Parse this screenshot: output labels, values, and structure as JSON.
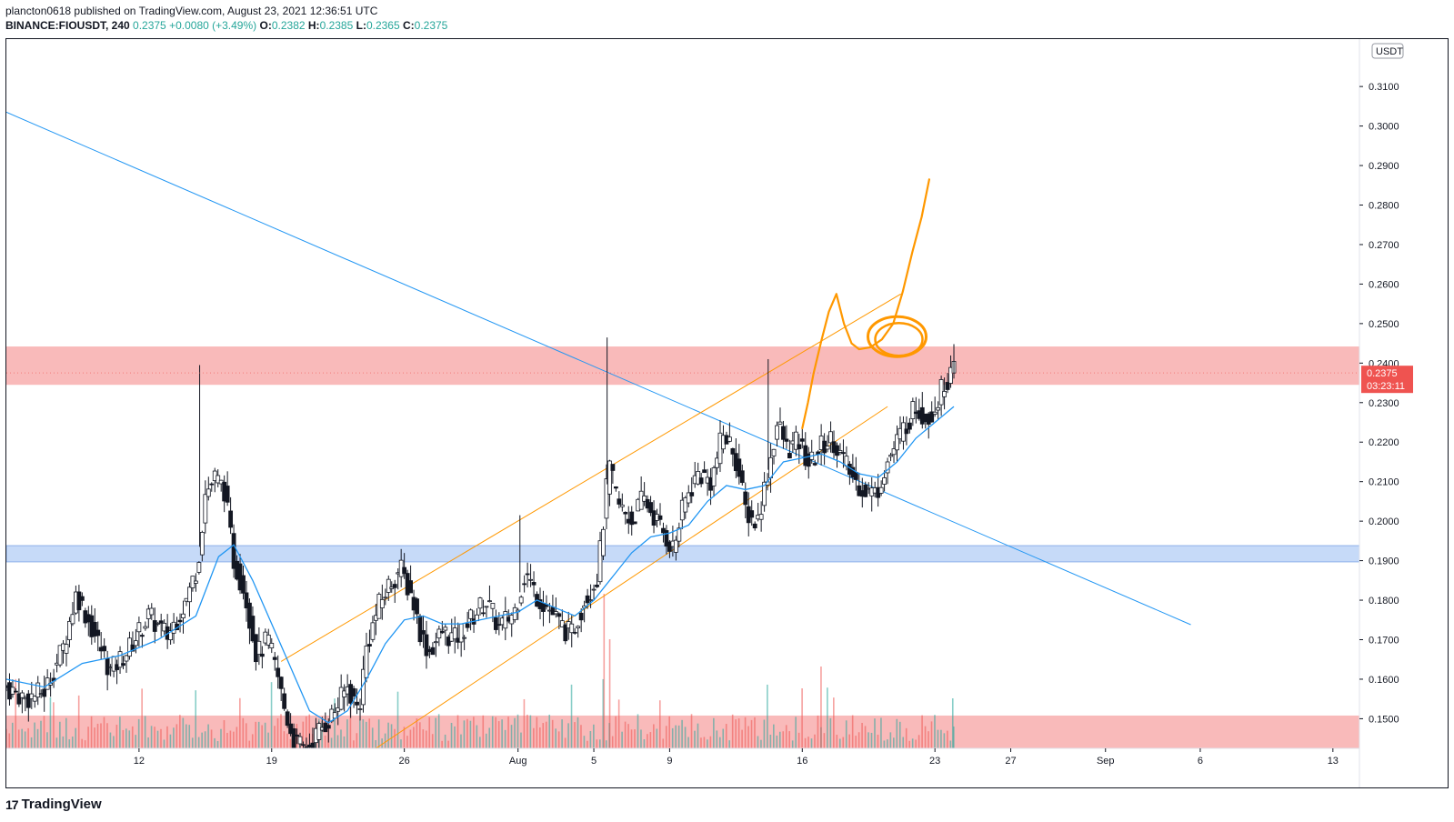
{
  "header": {
    "published": "plancton0618 published on TradingView.com, August 23, 2021 12:36:51 UTC",
    "symbol": "BINANCE:FIOUSDT, 240",
    "last": "0.2375",
    "change": "+0.0080 (+3.49%)",
    "o_label": "O:",
    "o": "0.2382",
    "h_label": "H:",
    "h": "0.2385",
    "l_label": "L:",
    "l": "0.2365",
    "c_label": "C:",
    "c": "0.2375"
  },
  "logo": {
    "text": "TradingView",
    "icon": "tradingview-logo-icon"
  },
  "colors": {
    "up": "#26a69a",
    "down": "#ef5350",
    "candle": "#131722",
    "ma": "#2196f3",
    "channel": "#ff9800",
    "resistance_zone": "#f7a3a3",
    "support_zone": "#b3cdf5",
    "price_tag": "#ef5350"
  },
  "chart_data": {
    "type": "candlestick",
    "currency": "USDT",
    "price_tag": {
      "price": "0.2375",
      "countdown": "03:23:11"
    },
    "y_ticks": [
      "0.1500",
      "0.1600",
      "0.1700",
      "0.1800",
      "0.1900",
      "0.2000",
      "0.2100",
      "0.2200",
      "0.2300",
      "0.2400",
      "0.2500",
      "0.2600",
      "0.2700",
      "0.2800",
      "0.2900",
      "0.3000",
      "0.3100"
    ],
    "ylim": [
      0.1425,
      0.322
    ],
    "x_ticks": [
      {
        "label": "12",
        "day": 12
      },
      {
        "label": "19",
        "day": 19
      },
      {
        "label": "26",
        "day": 26
      },
      {
        "label": "Aug",
        "day": 32
      },
      {
        "label": "5",
        "day": 36
      },
      {
        "label": "9",
        "day": 40
      },
      {
        "label": "16",
        "day": 47
      },
      {
        "label": "23",
        "day": 54
      },
      {
        "label": "27",
        "day": 58
      },
      {
        "label": "Sep",
        "day": 63
      },
      {
        "label": "6",
        "day": 68
      },
      {
        "label": "13",
        "day": 75
      }
    ],
    "xlim_day": [
      5.0,
      76.4
    ],
    "zones": [
      {
        "name": "resistance",
        "from": 0.2345,
        "to": 0.2442
      },
      {
        "name": "support",
        "from": 0.1897,
        "to": 0.1938
      },
      {
        "name": "bottom",
        "from": 0.1425,
        "to": 0.1508
      }
    ],
    "trendline": {
      "from": {
        "day": 5.0,
        "price": 0.3035
      },
      "to": {
        "day": 67.5,
        "price": 0.1738
      }
    },
    "channel": [
      {
        "from": {
          "day": 19.5,
          "price": 0.1645
        },
        "to": {
          "day": 52.2,
          "price": 0.2575
        }
      },
      {
        "from": {
          "day": 24.5,
          "price": 0.1425
        },
        "to": {
          "day": 51.5,
          "price": 0.229
        }
      }
    ],
    "close_path": [
      [
        5.0,
        0.158
      ],
      [
        6.0,
        0.155
      ],
      [
        7.0,
        0.157
      ],
      [
        8.0,
        0.168
      ],
      [
        8.7,
        0.182
      ],
      [
        9.5,
        0.173
      ],
      [
        10.5,
        0.162
      ],
      [
        11.5,
        0.168
      ],
      [
        12.5,
        0.176
      ],
      [
        13.5,
        0.171
      ],
      [
        14.5,
        0.18
      ],
      [
        15.1,
        0.189
      ],
      [
        15.5,
        0.207
      ],
      [
        16.0,
        0.211
      ],
      [
        16.5,
        0.208
      ],
      [
        17.0,
        0.19
      ],
      [
        17.6,
        0.182
      ],
      [
        18.2,
        0.166
      ],
      [
        18.8,
        0.17
      ],
      [
        19.3,
        0.161
      ],
      [
        19.7,
        0.152
      ],
      [
        20.2,
        0.144
      ],
      [
        20.8,
        0.142
      ],
      [
        21.5,
        0.147
      ],
      [
        22.2,
        0.151
      ],
      [
        23.0,
        0.158
      ],
      [
        23.6,
        0.152
      ],
      [
        24.0,
        0.168
      ],
      [
        24.6,
        0.178
      ],
      [
        25.2,
        0.184
      ],
      [
        25.8,
        0.188
      ],
      [
        26.4,
        0.181
      ],
      [
        26.9,
        0.171
      ],
      [
        27.3,
        0.167
      ],
      [
        28.0,
        0.172
      ],
      [
        28.7,
        0.17
      ],
      [
        29.5,
        0.175
      ],
      [
        30.3,
        0.18
      ],
      [
        31.0,
        0.173
      ],
      [
        31.8,
        0.177
      ],
      [
        32.4,
        0.187
      ],
      [
        33.0,
        0.181
      ],
      [
        33.6,
        0.178
      ],
      [
        34.2,
        0.174
      ],
      [
        34.8,
        0.171
      ],
      [
        35.5,
        0.18
      ],
      [
        36.2,
        0.186
      ],
      [
        36.8,
        0.214
      ],
      [
        37.3,
        0.204
      ],
      [
        38.0,
        0.2
      ],
      [
        38.6,
        0.206
      ],
      [
        39.2,
        0.201
      ],
      [
        39.8,
        0.196
      ],
      [
        40.2,
        0.193
      ],
      [
        40.8,
        0.205
      ],
      [
        41.5,
        0.212
      ],
      [
        42.2,
        0.21
      ],
      [
        42.8,
        0.222
      ],
      [
        43.4,
        0.218
      ],
      [
        44.0,
        0.203
      ],
      [
        44.6,
        0.199
      ],
      [
        45.2,
        0.213
      ],
      [
        45.7,
        0.225
      ],
      [
        46.2,
        0.218
      ],
      [
        46.8,
        0.22
      ],
      [
        47.4,
        0.214
      ],
      [
        48.0,
        0.219
      ],
      [
        48.6,
        0.221
      ],
      [
        49.2,
        0.215
      ],
      [
        49.8,
        0.21
      ],
      [
        50.3,
        0.208
      ],
      [
        50.9,
        0.207
      ],
      [
        51.4,
        0.214
      ],
      [
        51.9,
        0.219
      ],
      [
        52.4,
        0.224
      ],
      [
        53.0,
        0.229
      ],
      [
        53.6,
        0.226
      ],
      [
        54.0,
        0.229
      ],
      [
        54.6,
        0.236
      ],
      [
        55.0,
        0.2375
      ]
    ],
    "ma_path": [
      [
        5.0,
        0.16
      ],
      [
        7.0,
        0.158
      ],
      [
        9.0,
        0.164
      ],
      [
        11.0,
        0.166
      ],
      [
        13.0,
        0.17
      ],
      [
        15.0,
        0.176
      ],
      [
        16.2,
        0.191
      ],
      [
        17.0,
        0.194
      ],
      [
        18.0,
        0.185
      ],
      [
        19.0,
        0.174
      ],
      [
        20.0,
        0.163
      ],
      [
        21.0,
        0.152
      ],
      [
        22.0,
        0.149
      ],
      [
        23.0,
        0.152
      ],
      [
        24.0,
        0.16
      ],
      [
        25.0,
        0.169
      ],
      [
        26.0,
        0.175
      ],
      [
        27.0,
        0.176
      ],
      [
        28.0,
        0.174
      ],
      [
        29.0,
        0.174
      ],
      [
        30.0,
        0.175
      ],
      [
        31.0,
        0.176
      ],
      [
        32.0,
        0.177
      ],
      [
        33.0,
        0.18
      ],
      [
        34.0,
        0.178
      ],
      [
        35.0,
        0.176
      ],
      [
        36.0,
        0.18
      ],
      [
        37.0,
        0.186
      ],
      [
        38.0,
        0.192
      ],
      [
        39.0,
        0.196
      ],
      [
        40.0,
        0.197
      ],
      [
        41.0,
        0.199
      ],
      [
        42.0,
        0.205
      ],
      [
        43.0,
        0.209
      ],
      [
        44.0,
        0.208
      ],
      [
        45.0,
        0.209
      ],
      [
        46.0,
        0.215
      ],
      [
        47.0,
        0.216
      ],
      [
        48.0,
        0.217
      ],
      [
        49.0,
        0.215
      ],
      [
        50.0,
        0.212
      ],
      [
        51.0,
        0.211
      ],
      [
        52.0,
        0.215
      ],
      [
        53.0,
        0.221
      ],
      [
        54.0,
        0.225
      ],
      [
        55.0,
        0.229
      ]
    ],
    "spikes": [
      {
        "day": 15.2,
        "price": 0.2395
      },
      {
        "day": 36.7,
        "price": 0.2465
      },
      {
        "day": 45.2,
        "price": 0.241
      },
      {
        "day": 55.0,
        "price": 0.2448
      },
      {
        "day": 32.1,
        "price": 0.2015
      }
    ],
    "drawing": {
      "circle": {
        "day": 52.0,
        "price": 0.2467
      },
      "arrow": [
        [
          47.0,
          0.2235
        ],
        [
          47.3,
          0.23
        ],
        [
          47.6,
          0.2375
        ],
        [
          48.0,
          0.2455
        ],
        [
          48.4,
          0.253
        ],
        [
          48.8,
          0.2575
        ],
        [
          49.2,
          0.25
        ],
        [
          49.6,
          0.245
        ],
        [
          50.0,
          0.2435
        ],
        [
          50.6,
          0.244
        ],
        [
          51.2,
          0.246
        ],
        [
          51.8,
          0.25
        ],
        [
          52.3,
          0.258
        ],
        [
          52.8,
          0.268
        ],
        [
          53.3,
          0.277
        ],
        [
          53.7,
          0.2865
        ]
      ]
    }
  }
}
